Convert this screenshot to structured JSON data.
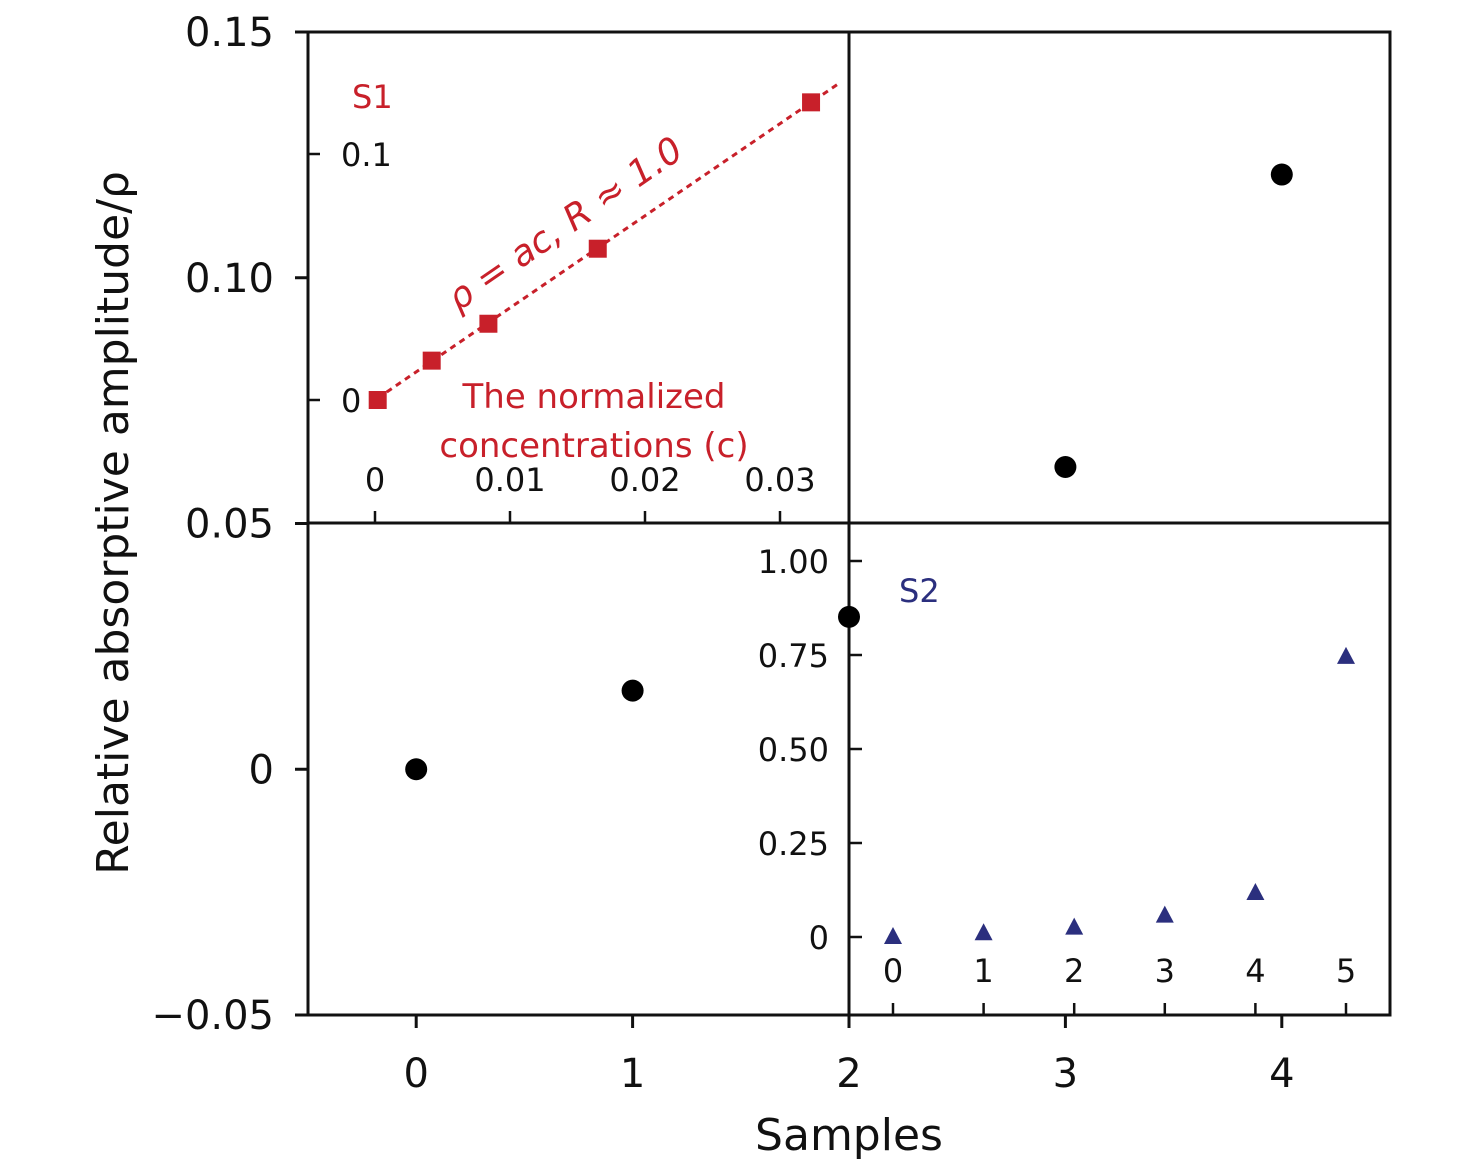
{
  "chart_data": [
    {
      "type": "scatter",
      "name": "main",
      "xlabel": "Samples",
      "ylabel": "Relative absorptive amplitude/ρ",
      "xlim": [
        -0.5,
        4.5
      ],
      "ylim": [
        -0.05,
        0.15
      ],
      "xticks": [
        0,
        1,
        2,
        3,
        4
      ],
      "xtick_labels": [
        "0",
        "1",
        "2",
        "3",
        "4"
      ],
      "yticks": [
        -0.05,
        0,
        0.05,
        0.1,
        0.15
      ],
      "ytick_labels": [
        "−0.05",
        "0",
        "0.05",
        "0.10",
        "0.15"
      ],
      "x": [
        0,
        1,
        2,
        3,
        4
      ],
      "y": [
        0.0,
        0.016,
        0.031,
        0.0615,
        0.121
      ],
      "marker_color": "#000000"
    },
    {
      "type": "scatter",
      "name": "inset-S1",
      "label": "S1",
      "annotation": "ρ = ac, R ≈ 1.0",
      "xlabel": "The normalized concentrations (c)",
      "xlim": [
        -0.0025,
        0.035
      ],
      "ylim": [
        -0.03,
        0.152
      ],
      "xticks": [
        0,
        0.01,
        0.02,
        0.03
      ],
      "xtick_labels": [
        "0",
        "0.01",
        "0.02",
        "0.03"
      ],
      "yticks": [
        0,
        0.1
      ],
      "ytick_labels": [
        "0",
        "0.1"
      ],
      "x": [
        0.0002,
        0.0042,
        0.0084,
        0.0165,
        0.0323
      ],
      "y": [
        0.0,
        0.016,
        0.031,
        0.0615,
        0.121
      ],
      "fit_line": {
        "slope": 3.745,
        "x_range": [
          0.0002,
          0.0345
        ]
      },
      "marker_color": "#c8202a"
    },
    {
      "type": "scatter",
      "name": "inset-S2",
      "label": "S2",
      "xlim": [
        -1.0,
        5.5
      ],
      "ylim": [
        -0.2,
        1.1
      ],
      "xticks": [
        0,
        1,
        2,
        3,
        4,
        5
      ],
      "xtick_labels": [
        "0",
        "1",
        "2",
        "3",
        "4",
        "5"
      ],
      "yticks": [
        0,
        0.25,
        0.5,
        0.75,
        1.0
      ],
      "ytick_labels": [
        "0",
        "0.25",
        "0.50",
        "0.75",
        "1.00"
      ],
      "x": [
        0,
        1,
        2,
        3,
        4,
        5
      ],
      "y": [
        0.0,
        0.01,
        0.025,
        0.057,
        0.117,
        0.745
      ],
      "marker_color": "#2b2f7e"
    }
  ]
}
